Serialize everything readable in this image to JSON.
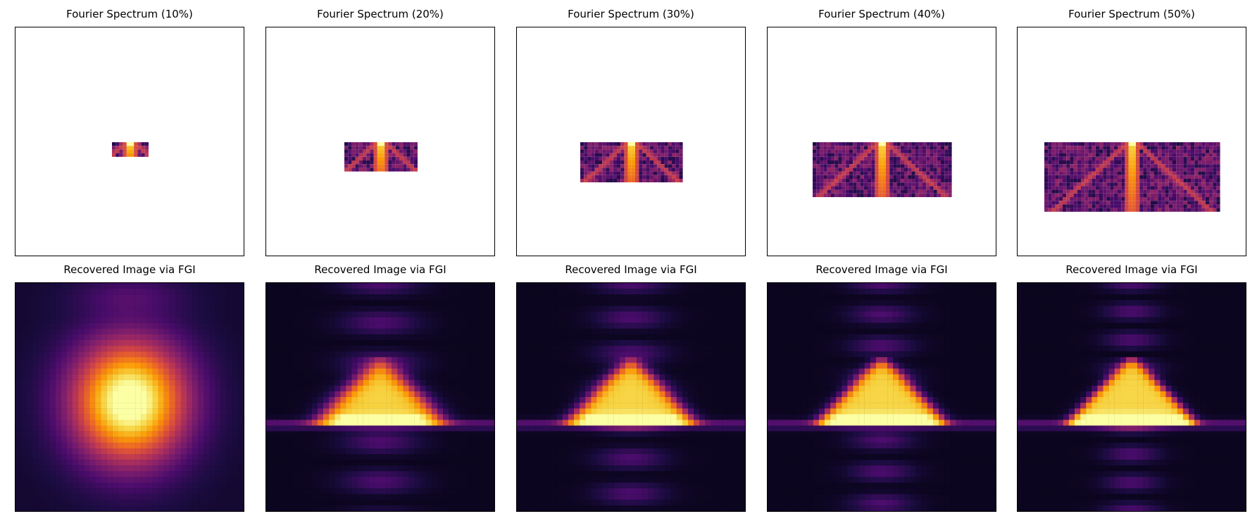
{
  "chart_data": [
    {
      "type": "heatmap",
      "title": "Fourier Spectrum (10%)",
      "sampling_ratio": 0.1,
      "colormap": "inferno",
      "kind": "fourier-spectrum",
      "axes_ticks": false
    },
    {
      "type": "heatmap",
      "title": "Fourier Spectrum (20%)",
      "sampling_ratio": 0.2,
      "colormap": "inferno",
      "kind": "fourier-spectrum",
      "axes_ticks": false
    },
    {
      "type": "heatmap",
      "title": "Fourier Spectrum (30%)",
      "sampling_ratio": 0.3,
      "colormap": "inferno",
      "kind": "fourier-spectrum",
      "axes_ticks": false
    },
    {
      "type": "heatmap",
      "title": "Fourier Spectrum (40%)",
      "sampling_ratio": 0.4,
      "colormap": "inferno",
      "kind": "fourier-spectrum",
      "axes_ticks": false
    },
    {
      "type": "heatmap",
      "title": "Fourier Spectrum (50%)",
      "sampling_ratio": 0.5,
      "colormap": "inferno",
      "kind": "fourier-spectrum",
      "axes_ticks": false
    },
    {
      "type": "heatmap",
      "title": "Recovered Image via FGI",
      "sampling_ratio": 0.1,
      "colormap": "inferno",
      "kind": "reconstruction",
      "axes_ticks": false
    },
    {
      "type": "heatmap",
      "title": "Recovered Image via FGI",
      "sampling_ratio": 0.2,
      "colormap": "inferno",
      "kind": "reconstruction",
      "axes_ticks": false
    },
    {
      "type": "heatmap",
      "title": "Recovered Image via FGI",
      "sampling_ratio": 0.3,
      "colormap": "inferno",
      "kind": "reconstruction",
      "axes_ticks": false
    },
    {
      "type": "heatmap",
      "title": "Recovered Image via FGI",
      "sampling_ratio": 0.4,
      "colormap": "inferno",
      "kind": "reconstruction",
      "axes_ticks": false
    },
    {
      "type": "heatmap",
      "title": "Recovered Image via FGI",
      "sampling_ratio": 0.5,
      "colormap": "inferno",
      "kind": "reconstruction",
      "axes_ticks": false
    }
  ],
  "colors": {
    "background": "#ffffff",
    "axes_edge": "#000000",
    "inferno": [
      "#000004",
      "#1b0c41",
      "#4a0c6b",
      "#781c6d",
      "#a52c60",
      "#cf4446",
      "#ed6925",
      "#fb9b06",
      "#f7d13d",
      "#fcffa4"
    ]
  }
}
